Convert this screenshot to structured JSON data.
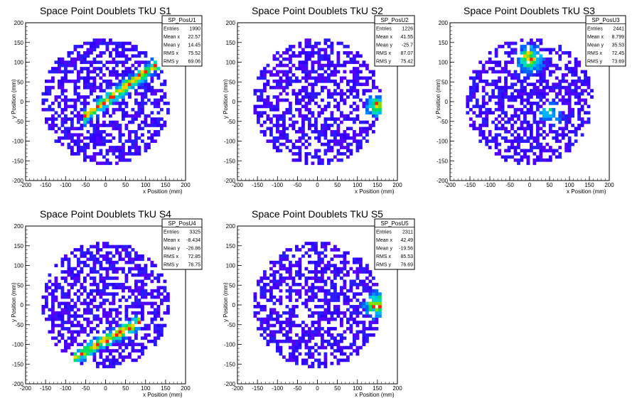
{
  "chart_data": [
    {
      "type": "heatmap",
      "title": "Space Point Doublets TkU S1",
      "xlabel": "x Position (mm)",
      "ylabel": "y Position (mm)",
      "xlim": [
        -200,
        200
      ],
      "ylim": [
        -200,
        200
      ],
      "xticks": [
        "-200",
        "-150",
        "-100",
        "-50",
        "0",
        "50",
        "100",
        "150",
        "200"
      ],
      "yticks": [
        "-200",
        "-150",
        "-100",
        "-50",
        "0",
        "50",
        "100",
        "150",
        "200"
      ],
      "stats": {
        "name": "SP_PosU1",
        "rows": [
          [
            "Entries",
            "1990"
          ],
          [
            "Mean x",
            "22.57"
          ],
          [
            "Mean y",
            "14.45"
          ],
          [
            "RMS x",
            "75.52"
          ],
          [
            "RMS y",
            "69.06"
          ]
        ]
      },
      "disk": {
        "center": [
          0,
          0
        ],
        "radius": 160
      },
      "hotspot": "diagonal band from lower-left to upper-right through (40,30)"
    },
    {
      "type": "heatmap",
      "title": "Space Point Doublets TkU S2",
      "xlabel": "x Position (mm)",
      "ylabel": "y Position (mm)",
      "xlim": [
        -200,
        200
      ],
      "ylim": [
        -200,
        200
      ],
      "xticks": [
        "-200",
        "-150",
        "-100",
        "-50",
        "0",
        "50",
        "100",
        "150",
        "200"
      ],
      "yticks": [
        "-200",
        "-150",
        "-100",
        "-50",
        "0",
        "50",
        "100",
        "150",
        "200"
      ],
      "stats": {
        "name": "SP_PosU2",
        "rows": [
          [
            "Entries",
            "1226"
          ],
          [
            "Mean x",
            "41.55"
          ],
          [
            "Mean y",
            "-25.7"
          ],
          [
            "RMS x",
            "87.07"
          ],
          [
            "RMS y",
            "75.42"
          ]
        ]
      },
      "disk": {
        "center": [
          0,
          0
        ],
        "radius": 160
      },
      "hotspot": "right edge near (150,-10)"
    },
    {
      "type": "heatmap",
      "title": "Space Point Doublets TkU S3",
      "xlabel": "x Position (mm)",
      "ylabel": "y Position (mm)",
      "xlim": [
        -200,
        200
      ],
      "ylim": [
        -200,
        200
      ],
      "xticks": [
        "-200",
        "-150",
        "-100",
        "-50",
        "0",
        "50",
        "100",
        "150",
        "200"
      ],
      "yticks": [
        "-200",
        "-150",
        "-100",
        "-50",
        "0",
        "50",
        "100",
        "150",
        "200"
      ],
      "stats": {
        "name": "SP_PosU3",
        "rows": [
          [
            "Entries",
            "2441"
          ],
          [
            "Mean x",
            "8.799"
          ],
          [
            "Mean y",
            "35.53"
          ],
          [
            "RMS x",
            "72.45"
          ],
          [
            "RMS y",
            "73.69"
          ]
        ]
      },
      "disk": {
        "center": [
          0,
          0
        ],
        "radius": 160
      },
      "hotspot": "upper region near (0,110)"
    },
    {
      "type": "heatmap",
      "title": "Space Point Doublets TkU S4",
      "xlabel": "x Position (mm)",
      "ylabel": "y Position (mm)",
      "xlim": [
        -200,
        200
      ],
      "ylim": [
        -200,
        200
      ],
      "xticks": [
        "-200",
        "-150",
        "-100",
        "-50",
        "0",
        "50",
        "100",
        "150",
        "200"
      ],
      "yticks": [
        "-200",
        "-150",
        "-100",
        "-50",
        "0",
        "50",
        "100",
        "150",
        "200"
      ],
      "stats": {
        "name": "SP_PosU4",
        "rows": [
          [
            "Entries",
            "3325"
          ],
          [
            "Mean x",
            "-8.434"
          ],
          [
            "Mean y",
            "-26.86"
          ],
          [
            "RMS x",
            "72.85"
          ],
          [
            "RMS y",
            "76.75"
          ]
        ]
      },
      "disk": {
        "center": [
          0,
          0
        ],
        "radius": 160
      },
      "hotspot": "diagonal band in lower half from (-60,-120) to (60,-60)"
    },
    {
      "type": "heatmap",
      "title": "Space Point Doublets TkU S5",
      "xlabel": "x Position (mm)",
      "ylabel": "y Position (mm)",
      "xlim": [
        -200,
        200
      ],
      "ylim": [
        -200,
        200
      ],
      "xticks": [
        "-200",
        "-150",
        "-100",
        "-50",
        "0",
        "50",
        "100",
        "150",
        "200"
      ],
      "yticks": [
        "-200",
        "-150",
        "-100",
        "-50",
        "0",
        "50",
        "100",
        "150",
        "200"
      ],
      "stats": {
        "name": "SP_PosU5",
        "rows": [
          [
            "Entries",
            "2311"
          ],
          [
            "Mean x",
            "42.49"
          ],
          [
            "Mean y",
            "-19.56"
          ],
          [
            "RMS x",
            "85.53"
          ],
          [
            "RMS y",
            "76.69"
          ]
        ]
      },
      "disk": {
        "center": [
          0,
          0
        ],
        "radius": 160
      },
      "hotspot": "right edge near (150,0)"
    }
  ],
  "colors": {
    "low": "#2200ff",
    "mid": "#00a0ff",
    "high": "#00e080",
    "peak": "#ff2200"
  }
}
